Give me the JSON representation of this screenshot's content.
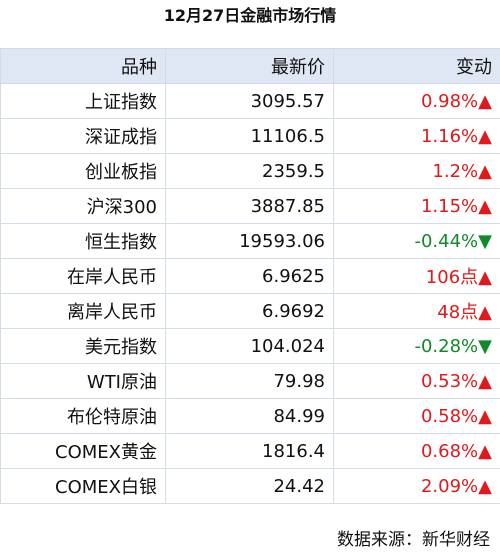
{
  "header": {
    "title": "12月27日金融市场行情"
  },
  "table": {
    "columns": [
      "品种",
      "最新价",
      "变动"
    ],
    "rows": [
      [
        "上证指数",
        "3095.57",
        "0.98%▲"
      ],
      [
        "深证成指",
        "11106.5",
        "1.16%▲"
      ],
      [
        "创业板指",
        "2359.5",
        "1.2%▲"
      ],
      [
        "沪深300",
        "3887.85",
        "1.15%▲"
      ],
      [
        "恒生指数",
        "19593.06",
        "-0.44%▼"
      ],
      [
        "在岸人民币",
        "6.9625",
        "106点▲"
      ],
      [
        "离岸人民币",
        "6.9692",
        "48点▲"
      ],
      [
        "美元指数",
        "104.024",
        "-0.28%▼"
      ],
      [
        "WTI原油",
        "79.98",
        "0.53%▲"
      ],
      [
        "布伦特原油",
        "84.99",
        "0.58%▲"
      ],
      [
        "COMEX黄金",
        "1816.4",
        "0.68%▲"
      ],
      [
        "COMEX白银",
        "24.42",
        "2.09%▲"
      ]
    ]
  },
  "footer": {
    "source": "数据来源：新华财经"
  }
}
